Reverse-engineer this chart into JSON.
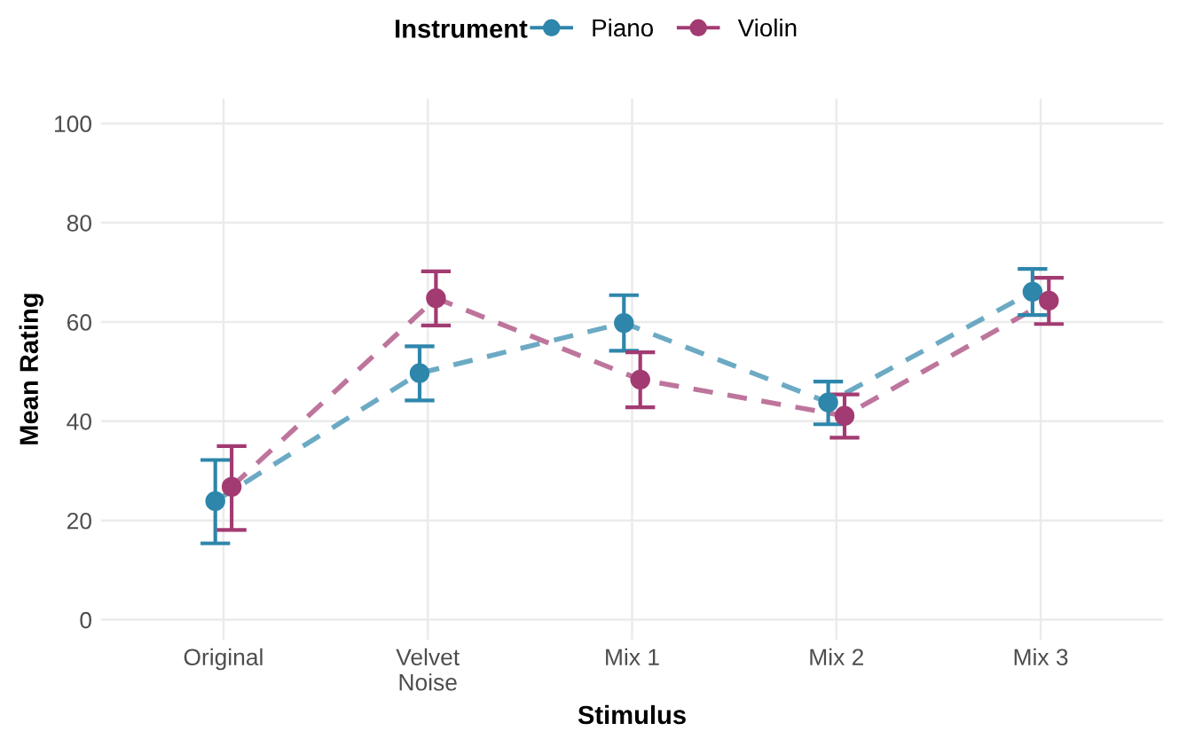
{
  "chart_data": {
    "type": "line",
    "xlabel": "Stimulus",
    "ylabel": "Mean Rating",
    "legend_title": "Instrument",
    "legend": "top",
    "categories": [
      "Original",
      "Velvet\nNoise",
      "Mix 1",
      "Mix 2",
      "Mix 3"
    ],
    "series": [
      {
        "name": "Piano",
        "color": "#2e86ab",
        "values": [
          23.9,
          49.7,
          59.8,
          43.8,
          66.1
        ],
        "errors": [
          [
            15.4,
            32.2
          ],
          [
            44.2,
            55.1
          ],
          [
            54.2,
            65.4
          ],
          [
            39.4,
            48.0
          ],
          [
            61.4,
            70.7
          ]
        ]
      },
      {
        "name": "Violin",
        "color": "#a23b72",
        "values": [
          26.8,
          64.8,
          48.4,
          41.1,
          64.3
        ],
        "errors": [
          [
            18.1,
            35.0
          ],
          [
            59.3,
            70.2
          ],
          [
            42.8,
            53.9
          ],
          [
            36.7,
            45.4
          ],
          [
            59.6,
            68.9
          ]
        ]
      }
    ],
    "ylim": [
      -4,
      105
    ],
    "yticks": [
      0,
      20,
      40,
      60,
      80,
      100
    ],
    "grid": true,
    "marker": "circle",
    "line_style": "dashed"
  }
}
